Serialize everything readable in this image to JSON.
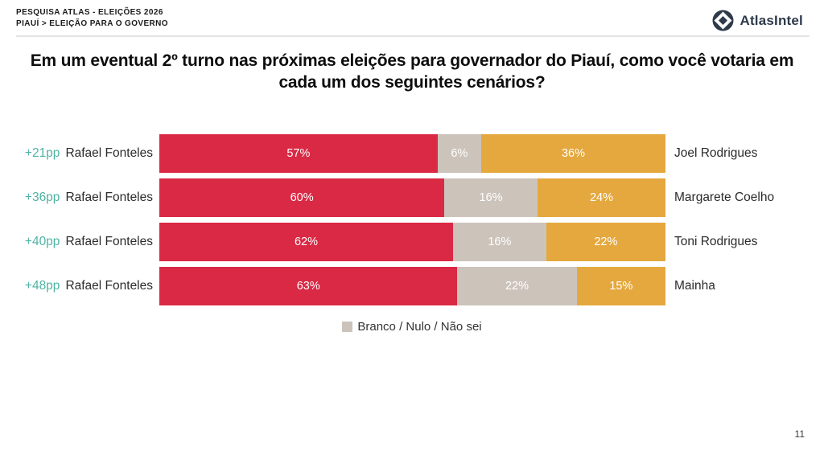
{
  "header": {
    "line1": "PESQUISA ATLAS - ELEIÇÕES 2026",
    "line2": "PIAUÍ > ELEIÇÃO PARA O GOVERNO",
    "brand": "AtlasIntel"
  },
  "title": "Em um eventual 2º turno nas próximas eleições para governador do Piauí, como você votaria em cada um dos seguintes cenários?",
  "legend": {
    "label": "Branco / Nulo / Não sei"
  },
  "page_number": "11",
  "colors": {
    "bar_red": "#d92944",
    "bar_neutral": "#ccc3bb",
    "bar_orange": "#e5a83e",
    "accent_teal": "#4fb3a4",
    "brand_navy": "#2e3a4a"
  },
  "chart_data": {
    "type": "bar",
    "variant": "horizontal-stacked",
    "unit": "%",
    "legend_position": "bottom-center",
    "segment_roles": [
      "left-candidate",
      "branco-nulo-nao-sei",
      "right-candidate"
    ],
    "rows": [
      {
        "margin": "+21pp",
        "left": "Rafael Fonteles",
        "right": "Joel Rodrigues",
        "values": [
          57,
          6,
          36
        ],
        "value_labels": [
          "57%",
          "6%",
          "36%"
        ]
      },
      {
        "margin": "+36pp",
        "left": "Rafael Fonteles",
        "right": "Margarete Coelho",
        "values": [
          60,
          16,
          24
        ],
        "value_labels": [
          "60%",
          "16%",
          "24%"
        ]
      },
      {
        "margin": "+40pp",
        "left": "Rafael Fonteles",
        "right": "Toni Rodrigues",
        "values": [
          62,
          16,
          22
        ],
        "value_labels": [
          "62%",
          "16%",
          "22%"
        ]
      },
      {
        "margin": "+48pp",
        "left": "Rafael Fonteles",
        "right": "Mainha",
        "values": [
          63,
          22,
          15
        ],
        "value_labels": [
          "63%",
          "22%",
          "15%"
        ]
      }
    ]
  }
}
